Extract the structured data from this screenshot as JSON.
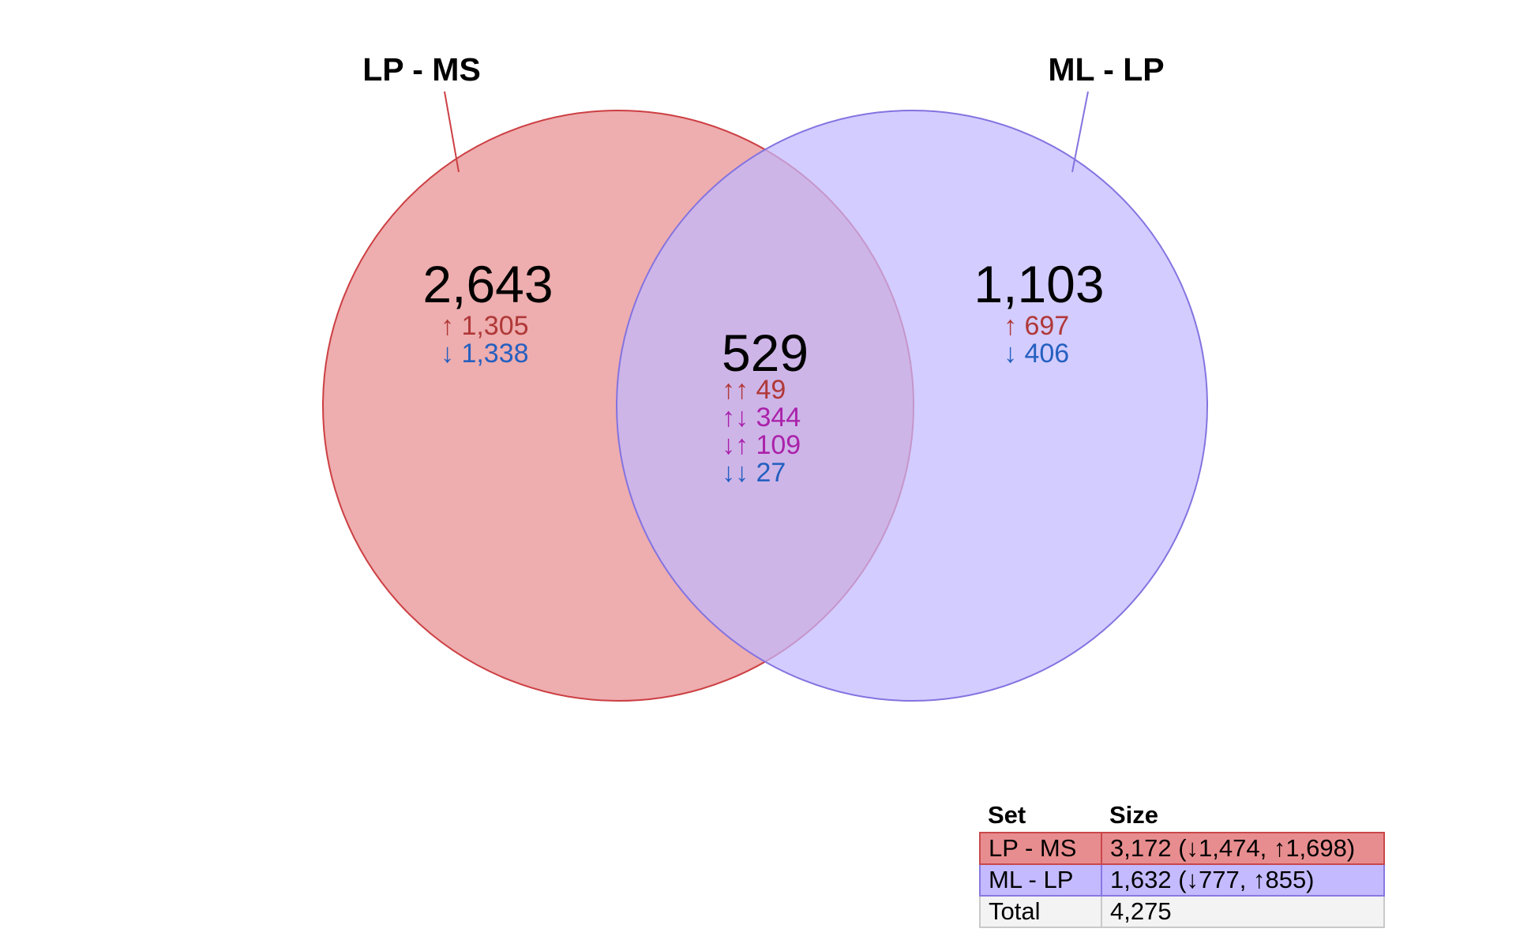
{
  "colors": {
    "set_a_fill": "#e88d8f",
    "set_a_stroke": "#cc3f43",
    "set_b_fill": "#c2b8ff",
    "set_b_stroke": "#8373e0",
    "up": "#b03838",
    "down": "#2560c0",
    "mixed": "#aa22aa",
    "table_a_bg": "#e88d8f",
    "table_b_bg": "#c4baff",
    "table_total_bg": "#f3f3f3"
  },
  "sets": {
    "a": {
      "label": "LP - MS"
    },
    "b": {
      "label": "ML - LP"
    }
  },
  "regions": {
    "a_only": {
      "total": "2,643",
      "up": "↑ 1,305",
      "down": "↓ 1,338"
    },
    "overlap": {
      "total": "529",
      "up_up": "↑↑ 49",
      "up_down": "↑↓ 344",
      "down_up": "↓↑ 109",
      "down_down": "↓↓ 27"
    },
    "b_only": {
      "total": "1,103",
      "up": "↑ 697",
      "down": "↓ 406"
    }
  },
  "table": {
    "headers": {
      "set": "Set",
      "size": "Size"
    },
    "rows": [
      {
        "set": "LP - MS",
        "size": "3,172 (↓1,474, ↑1,698)"
      },
      {
        "set": "ML - LP",
        "size": "1,632 (↓777, ↑855)"
      },
      {
        "set": "Total",
        "size": "4,275"
      }
    ]
  }
}
